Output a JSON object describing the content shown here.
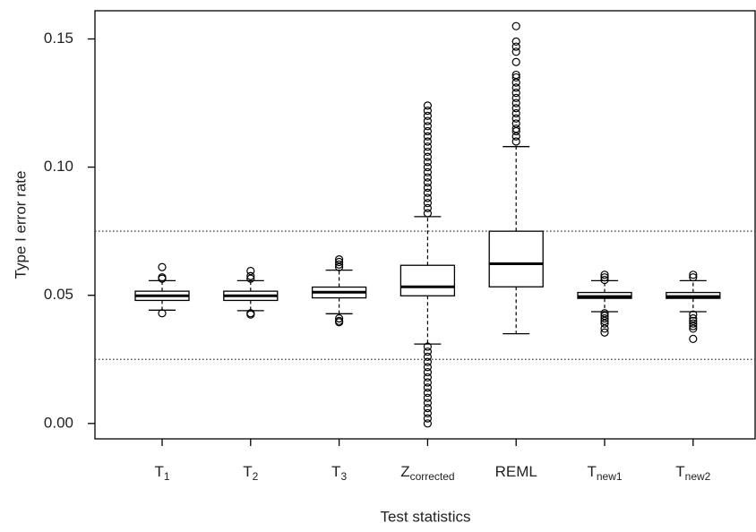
{
  "chart_data": {
    "type": "box",
    "y_label": "Type I error rate",
    "x_label": "Test statistics",
    "categories": [
      "T",
      "T",
      "T",
      "Z",
      "REML",
      "T",
      "T"
    ],
    "category_subscripts": [
      "1",
      "2",
      "3",
      "corrected",
      null,
      "new1",
      "new2"
    ],
    "ylim": [
      -0.006,
      0.161
    ],
    "yticks": [
      {
        "value": 0,
        "label": "0.00"
      },
      {
        "value": 0.05,
        "label": "0.05"
      },
      {
        "value": 0.1,
        "label": "0.10"
      },
      0.15
    ],
    "reference_lines": [
      0.075,
      0.025
    ],
    "color": "#000000",
    "boxes": [
      {
        "whisker_low": 0.0442,
        "q1": 0.048,
        "median": 0.0498,
        "q3": 0.0516,
        "whisker_high": 0.0557,
        "outliers": [
          0.061,
          0.057,
          0.0565,
          0.043
        ]
      },
      {
        "whisker_low": 0.044,
        "q1": 0.048,
        "median": 0.0498,
        "q3": 0.0516,
        "whisker_high": 0.0557,
        "outliers": [
          0.0595,
          0.0575,
          0.0565,
          0.043,
          0.0425
        ]
      },
      {
        "whisker_low": 0.0428,
        "q1": 0.049,
        "median": 0.0512,
        "q3": 0.0532,
        "whisker_high": 0.0598,
        "outliers": [
          0.064,
          0.063,
          0.062,
          0.061,
          0.041,
          0.04,
          0.0395
        ]
      },
      {
        "whisker_low": 0.031,
        "q1": 0.0498,
        "median": 0.0533,
        "q3": 0.0617,
        "whisker_high": 0.0807,
        "outliers": [
          0.082,
          0.084,
          0.086,
          0.088,
          0.09,
          0.092,
          0.094,
          0.096,
          0.098,
          0.1,
          0.102,
          0.104,
          0.106,
          0.108,
          0.11,
          0.112,
          0.114,
          0.116,
          0.118,
          0.12,
          0.122,
          0.124,
          0.03,
          0.028,
          0.026,
          0.024,
          0.022,
          0.02,
          0.018,
          0.016,
          0.014,
          0.012,
          0.01,
          0.008,
          0.006,
          0.004,
          0.002,
          0.0
        ]
      },
      {
        "whisker_low": 0.035,
        "q1": 0.0533,
        "median": 0.0623,
        "q3": 0.075,
        "whisker_high": 0.108,
        "outliers": [
          0.11,
          0.112,
          0.114,
          0.115,
          0.117,
          0.119,
          0.121,
          0.123,
          0.125,
          0.127,
          0.129,
          0.131,
          0.133,
          0.135,
          0.136,
          0.141,
          0.145,
          0.147,
          0.149,
          0.155
        ]
      },
      {
        "whisker_low": 0.0436,
        "q1": 0.0488,
        "median": 0.0495,
        "q3": 0.0511,
        "whisker_high": 0.0557,
        "outliers": [
          0.058,
          0.057,
          0.056,
          0.043,
          0.042,
          0.041,
          0.04,
          0.039,
          0.037,
          0.0355
        ]
      },
      {
        "whisker_low": 0.0436,
        "q1": 0.0488,
        "median": 0.0495,
        "q3": 0.0511,
        "whisker_high": 0.0557,
        "outliers": [
          0.058,
          0.057,
          0.0425,
          0.041,
          0.04,
          0.039,
          0.038,
          0.037,
          0.033
        ]
      }
    ]
  }
}
